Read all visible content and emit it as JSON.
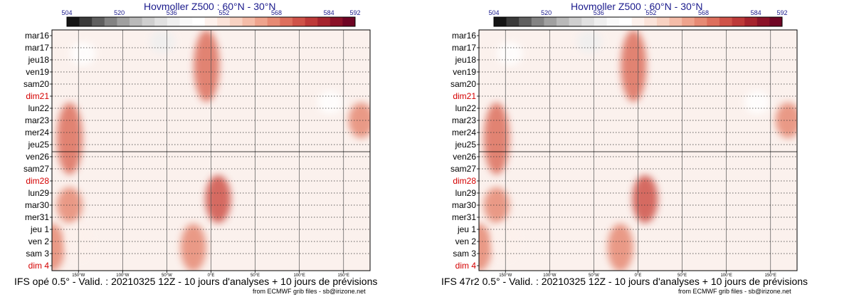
{
  "panels": [
    {
      "title": "Hovmoller Z500 : 60°N - 30°N",
      "footer": "IFS opé 0.5° - Valid. : 20210325 12Z - 10 jours d'analyses + 10 jours de prévisions",
      "credit": "from ECMWF grib files - sb@irizone.net"
    },
    {
      "title": "Hovmoller Z500 : 60°N - 30°N",
      "footer": "IFS 47r2 0.5° - Valid. : 20210325 12Z - 10 jours d'analyses + 10 jours de prévisions",
      "credit": "from ECMWF grib files - sb@irizone.net"
    }
  ],
  "chart_data": {
    "type": "heatmap",
    "title": "Hovmoller Z500 : 60°N - 30°N",
    "variable": "Z500 (dam)",
    "x_ticks": [
      "150°W",
      "100°W",
      "50°W",
      "0°E",
      "50°E",
      "100°E",
      "150°E"
    ],
    "x_tick_values": [
      -150,
      -100,
      -50,
      0,
      50,
      100,
      150
    ],
    "xlim": [
      -180,
      180
    ],
    "y_labels": [
      "mar16",
      "mar17",
      "jeu18",
      "ven19",
      "sam20",
      "dim21",
      "lun22",
      "mar23",
      "mer24",
      "jeu25",
      "ven26",
      "sam27",
      "dim28",
      "lun29",
      "mar30",
      "mer31",
      "jeu 1",
      "ven 2",
      "sam 3",
      "dim 4"
    ],
    "weekend_labels": [
      "dim21",
      "dim28",
      "dim 4"
    ],
    "analysis_end_label": "ven26",
    "colorbar": {
      "tick_labels": [
        "504",
        "520",
        "536",
        "552",
        "568",
        "584",
        "592"
      ],
      "tick_values": [
        504,
        520,
        536,
        552,
        568,
        584,
        592
      ],
      "levels": [
        504,
        508,
        512,
        516,
        520,
        524,
        528,
        532,
        536,
        540,
        544,
        548,
        552,
        556,
        560,
        564,
        568,
        572,
        576,
        580,
        584,
        588,
        592
      ],
      "colors": [
        "#151515",
        "#3a3a3a",
        "#5f5f5f",
        "#838383",
        "#a0a0a0",
        "#b9b9b9",
        "#cfcfcf",
        "#e1e1e1",
        "#efefef",
        "#f9f9f9",
        "#ffffff",
        "#fdf1ec",
        "#fbe3d9",
        "#f8d2c2",
        "#f4bca8",
        "#eea38d",
        "#e68a74",
        "#dd6f5d",
        "#cf5349",
        "#bd3a39",
        "#a5242e",
        "#8a1228",
        "#6e0524"
      ]
    },
    "features": [
      {
        "kind": "ridge",
        "lon": -5,
        "date_from": "mar16",
        "date_to": "dim21",
        "value": 572
      },
      {
        "kind": "ridge",
        "lon": -160,
        "date_from": "lun22",
        "date_to": "sam27",
        "value": 572
      },
      {
        "kind": "ridge",
        "lon": -160,
        "date_from": "lun29",
        "date_to": "mer31",
        "value": 568
      },
      {
        "kind": "ridge",
        "lon": 8,
        "date_from": "dim28",
        "date_to": "mer31",
        "value": 576
      },
      {
        "kind": "ridge",
        "lon": -20,
        "date_from": "jeu 1",
        "date_to": "dim 4",
        "value": 568
      },
      {
        "kind": "ridge",
        "lon": 170,
        "date_from": "lun22",
        "date_to": "mer24",
        "value": 568
      },
      {
        "kind": "ridge",
        "lon": -180,
        "date_from": "jeu 1",
        "date_to": "dim 4",
        "value": 568
      },
      {
        "kind": "trough",
        "lon": -55,
        "date_from": "mar16",
        "date_to": "mar17",
        "value": 536
      },
      {
        "kind": "trough",
        "lon": -145,
        "date_from": "mar17",
        "date_to": "jeu18",
        "value": 544
      },
      {
        "kind": "trough",
        "lon": 135,
        "date_from": "dim21",
        "date_to": "lun22",
        "value": 544
      },
      {
        "kind": "trough",
        "lon": -150,
        "date_from": "jeu 1",
        "date_to": "sam 3",
        "value": 548
      }
    ]
  }
}
